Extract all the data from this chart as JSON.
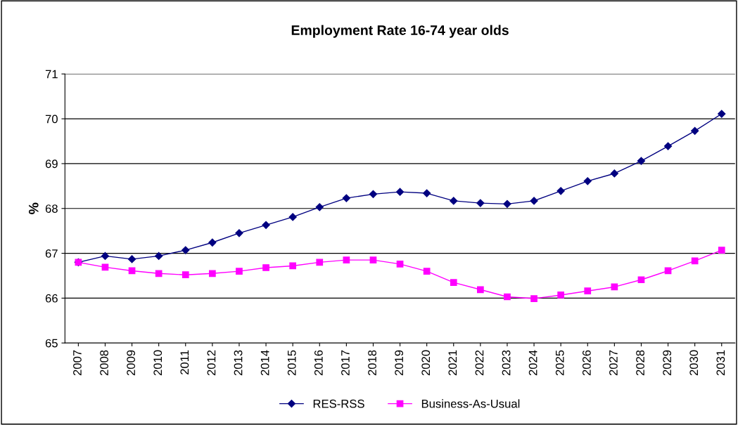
{
  "chart_data": {
    "type": "line",
    "title": "Employment Rate 16-74 year olds",
    "ylabel": "%",
    "categories": [
      "2007",
      "2008",
      "2009",
      "2010",
      "2011",
      "2012",
      "2013",
      "2014",
      "2015",
      "2016",
      "2017",
      "2018",
      "2019",
      "2020",
      "2021",
      "2022",
      "2023",
      "2024",
      "2025",
      "2026",
      "2027",
      "2028",
      "2029",
      "2030",
      "2031"
    ],
    "series": [
      {
        "name": "RES-RSS",
        "color": "#000080",
        "marker": "diamond",
        "values": [
          66.8,
          66.94,
          66.87,
          66.94,
          67.07,
          67.24,
          67.45,
          67.63,
          67.81,
          68.03,
          68.23,
          68.32,
          68.37,
          68.34,
          68.17,
          68.12,
          68.1,
          68.17,
          68.39,
          68.61,
          68.78,
          69.06,
          69.39,
          69.73,
          70.11
        ]
      },
      {
        "name": "Business-As-Usual",
        "color": "#ff00ff",
        "marker": "square",
        "values": [
          66.8,
          66.69,
          66.61,
          66.55,
          66.52,
          66.55,
          66.6,
          66.68,
          66.72,
          66.8,
          66.85,
          66.85,
          66.76,
          66.6,
          66.35,
          66.19,
          66.03,
          65.99,
          66.07,
          66.16,
          66.25,
          66.41,
          66.61,
          66.83,
          67.07
        ]
      }
    ],
    "ylim": [
      65,
      71
    ],
    "yticks": [
      65,
      66,
      67,
      68,
      69,
      70,
      71
    ],
    "grid": "y",
    "legend": "bottom"
  }
}
